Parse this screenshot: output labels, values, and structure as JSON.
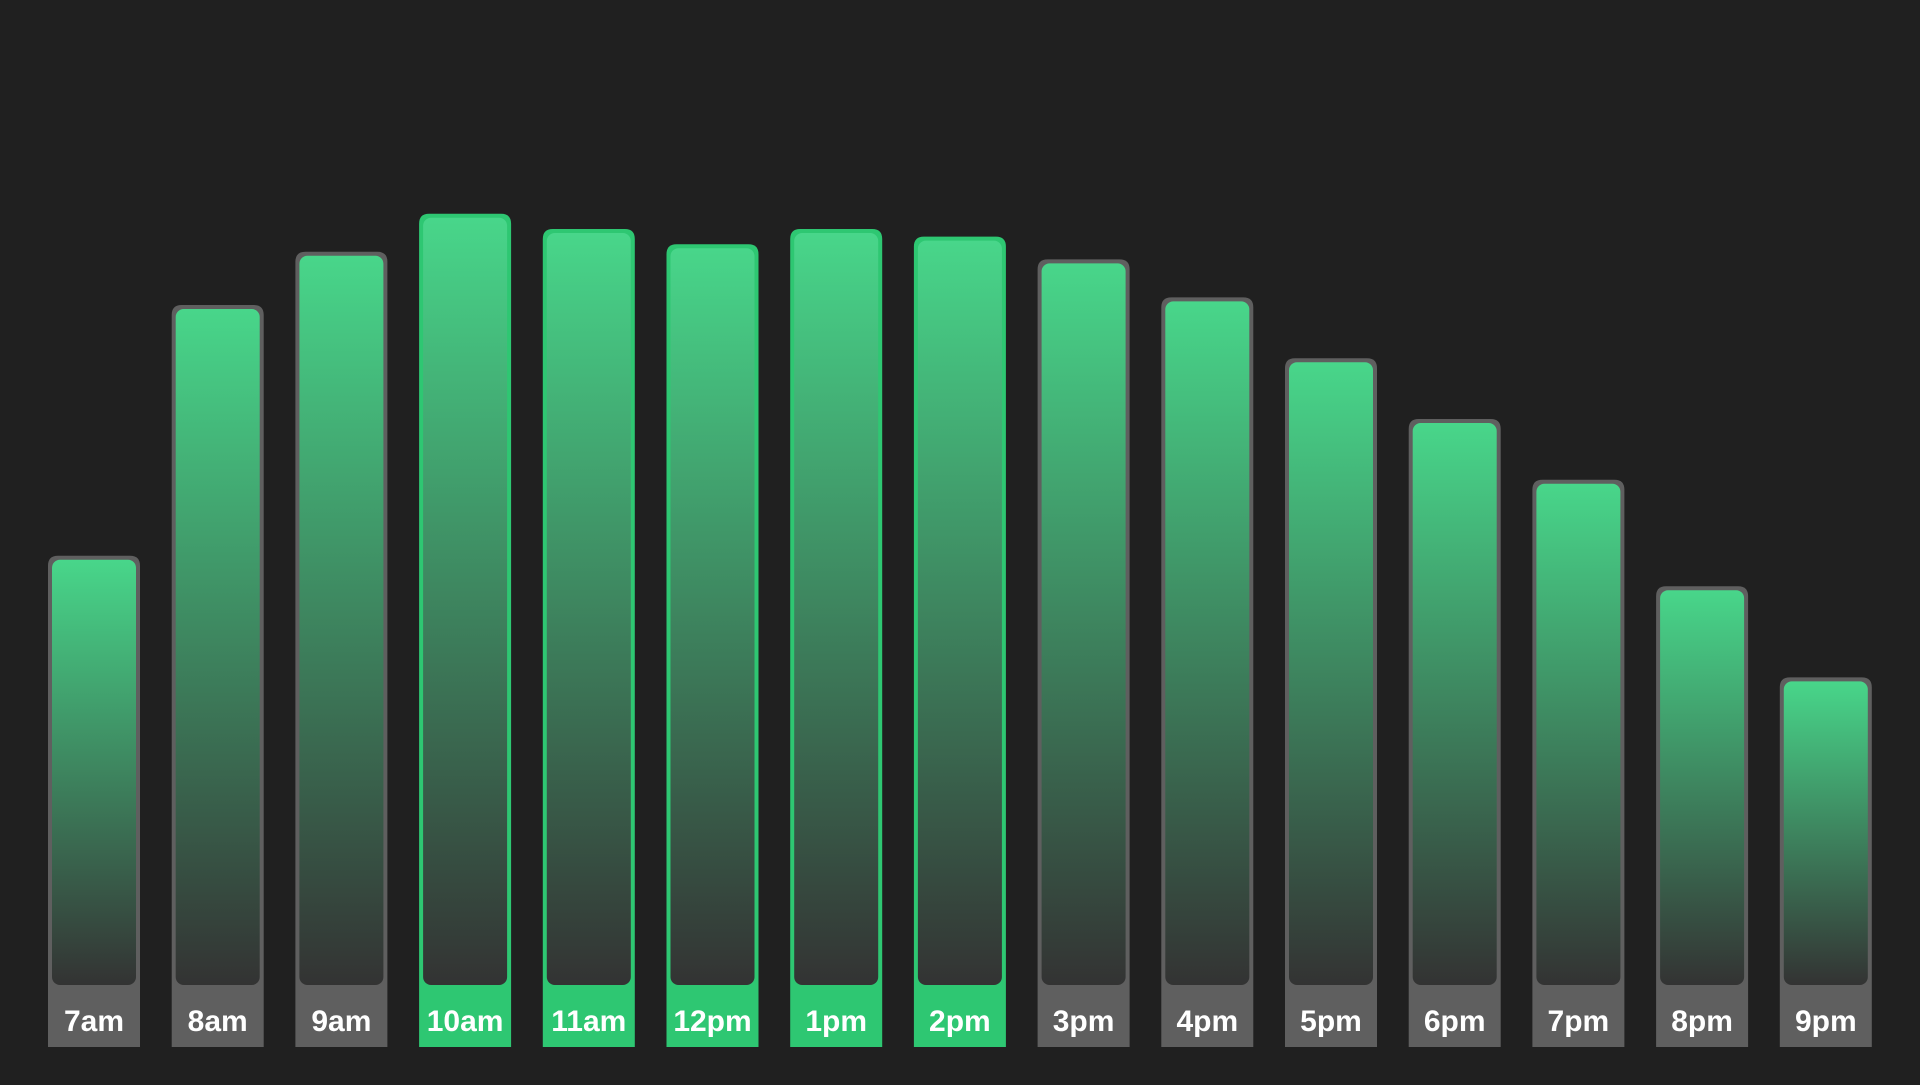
{
  "colors": {
    "background": "#202020",
    "bar_top": "#48d68a",
    "bar_bottom": "#333333",
    "bar_border": "#5f5f5f",
    "highlight": "#2ec772",
    "label_text": "#ffffff"
  },
  "chart_data": {
    "type": "bar",
    "title": "",
    "xlabel": "",
    "ylabel": "",
    "grid": false,
    "legend": "none",
    "ylim": [
      0,
      100
    ],
    "categories": [
      "7am",
      "8am",
      "9am",
      "10am",
      "11am",
      "12pm",
      "1pm",
      "2pm",
      "3pm",
      "4pm",
      "5pm",
      "6pm",
      "7pm",
      "8pm",
      "9pm"
    ],
    "values": [
      57,
      90,
      97,
      102,
      100,
      98,
      100,
      99,
      96,
      91,
      83,
      75,
      67,
      53,
      41
    ],
    "highlighted": [
      "10am",
      "11am",
      "12pm",
      "1pm",
      "2pm"
    ]
  }
}
